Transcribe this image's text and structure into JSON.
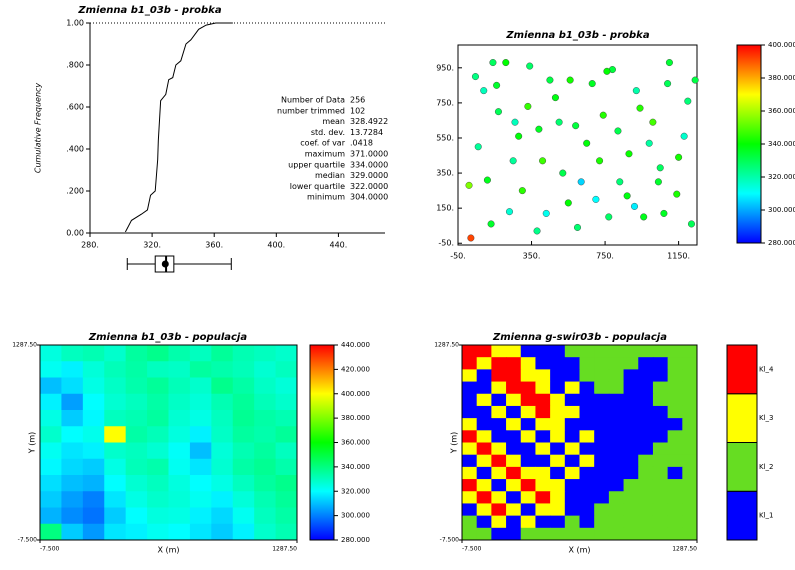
{
  "chart_data": [
    {
      "type": "cdf",
      "title": "Zmienna b1_03b - probka",
      "y_label": "Cumulative Frequency",
      "x": [
        302.8,
        306.7,
        313.2,
        317,
        319,
        322,
        323.6,
        324,
        325.5,
        328.8,
        330.7,
        333.3,
        335.3,
        338.5,
        341.8,
        345,
        350,
        354.8,
        361,
        372
      ],
      "y": [
        0.005,
        0.06,
        0.09,
        0.11,
        0.18,
        0.2,
        0.35,
        0.44,
        0.63,
        0.66,
        0.73,
        0.74,
        0.8,
        0.82,
        0.9,
        0.92,
        0.97,
        0.99,
        1.0,
        1.0
      ],
      "color": "#000000",
      "xlim": [
        280,
        470
      ],
      "ylim": [
        0,
        1
      ],
      "xticks": [
        {
          "value": 280,
          "label": "280."
        },
        {
          "value": 320,
          "label": "320."
        },
        {
          "value": 360,
          "label": "360."
        },
        {
          "value": 400,
          "label": "400."
        },
        {
          "value": 440,
          "label": "440."
        }
      ],
      "yticks": [
        {
          "value": 0,
          "label": "0.00"
        },
        {
          "value": 0.2,
          "label": ".200"
        },
        {
          "value": 0.4,
          "label": ".400"
        },
        {
          "value": 0.6,
          "label": ".600"
        },
        {
          "value": 0.8,
          "label": ".800"
        },
        {
          "value": 1,
          "label": "1.00"
        }
      ],
      "stats": [
        {
          "label": "Number of Data",
          "value": "256"
        },
        {
          "label": "number trimmed",
          "value": "102"
        },
        {
          "label": "mean",
          "value": "328.4922"
        },
        {
          "label": "std. dev.",
          "value": "13.7284"
        },
        {
          "label": "coef. of var",
          "value": ".0418"
        },
        {
          "label": "maximum",
          "value": "371.0000"
        },
        {
          "label": "upper quartile",
          "value": "334.0000"
        },
        {
          "label": "median",
          "value": "329.0000"
        },
        {
          "label": "lower quartile",
          "value": "322.0000"
        },
        {
          "label": "minimum",
          "value": "304.0000"
        }
      ]
    },
    {
      "type": "scatter",
      "title": "Zmienna b1_03b - probka",
      "x": [
        20,
        45,
        90,
        130,
        170,
        210,
        250,
        300,
        340,
        390,
        430,
        480,
        520,
        560,
        600,
        650,
        700,
        740,
        790,
        830,
        880,
        920,
        960,
        1010,
        1050,
        1100,
        1140,
        1180,
        1220,
        60,
        110,
        160,
        230,
        280,
        330,
        380,
        450,
        500,
        550,
        620,
        680,
        720,
        770,
        820,
        870,
        940,
        990,
        1040,
        1090,
        1150,
        1200,
        10,
        140,
        260,
        410,
        590,
        760,
        910,
        1070,
        1240
      ],
      "y": [
        -20,
        900,
        820,
        60,
        700,
        980,
        420,
        250,
        960,
        600,
        120,
        780,
        350,
        880,
        40,
        520,
        200,
        680,
        940,
        300,
        460,
        820,
        100,
        640,
        380,
        980,
        230,
        560,
        60,
        500,
        310,
        850,
        130,
        560,
        730,
        20,
        880,
        640,
        180,
        300,
        860,
        420,
        100,
        590,
        220,
        720,
        520,
        300,
        860,
        440,
        760,
        280,
        980,
        640,
        420,
        620,
        930,
        160,
        120,
        880
      ],
      "values": [
        392,
        325,
        318,
        335,
        330,
        340,
        322,
        345,
        328,
        336,
        312,
        338,
        331,
        342,
        327,
        339,
        310,
        344,
        333,
        326,
        341,
        320,
        337,
        348,
        329,
        334,
        343,
        316,
        330,
        322,
        337,
        335,
        315,
        339,
        346,
        324,
        332,
        327,
        340,
        305,
        336,
        343,
        328,
        331,
        338,
        344,
        321,
        335,
        330,
        342,
        326,
        355,
        329,
        318,
        347,
        333,
        340,
        308,
        336,
        332
      ],
      "xlim": [
        -50,
        1250
      ],
      "ylim": [
        -60,
        1080
      ],
      "xticks": [
        {
          "value": -50,
          "label": "-50."
        },
        {
          "value": 350,
          "label": "350."
        },
        {
          "value": 750,
          "label": "750."
        },
        {
          "value": 1150,
          "label": "1150."
        }
      ],
      "yticks": [
        {
          "value": -50,
          "label": "-50."
        },
        {
          "value": 150,
          "label": "150."
        },
        {
          "value": 350,
          "label": "350."
        },
        {
          "value": 550,
          "label": "550."
        },
        {
          "value": 750,
          "label": "750."
        },
        {
          "value": 950,
          "label": "950."
        }
      ],
      "colormap": [
        "#0000ff",
        "#00ffff",
        "#00ff00",
        "#ffff00",
        "#ff0000"
      ],
      "clim": [
        280,
        400
      ],
      "cticks": [
        {
          "value": 280,
          "label": "280.000"
        },
        {
          "value": 300,
          "label": "300.000"
        },
        {
          "value": 320,
          "label": "320.000"
        },
        {
          "value": 340,
          "label": "340.000"
        },
        {
          "value": 360,
          "label": "360.000"
        },
        {
          "value": 380,
          "label": "380.000"
        },
        {
          "value": 400,
          "label": "400.000"
        }
      ]
    },
    {
      "type": "heatmap",
      "title": "Zmienna b1_03b - populacja",
      "x_label": "X (m)",
      "y_label": "Y (m)",
      "xlim": [
        -7.5,
        1287.5
      ],
      "ylim": [
        -7.5,
        1287.5
      ],
      "xticks": [
        {
          "value": -7.5,
          "label": "-7.500"
        },
        {
          "value": 1287.5,
          "label": "1287.50"
        }
      ],
      "yticks": [
        {
          "value": -7.5,
          "label": "-7.500"
        },
        {
          "value": 1287.5,
          "label": "1287.50"
        }
      ],
      "values": [
        [
          325,
          330,
          332,
          328,
          335,
          338,
          333,
          330,
          336,
          332,
          330,
          328
        ],
        [
          322,
          318,
          326,
          331,
          334,
          330,
          329,
          335,
          333,
          331,
          327,
          330
        ],
        [
          310,
          315,
          324,
          329,
          333,
          336,
          331,
          328,
          338,
          334,
          329,
          326
        ],
        [
          318,
          305,
          320,
          327,
          330,
          334,
          329,
          326,
          332,
          336,
          331,
          328
        ],
        [
          324,
          312,
          319,
          330,
          332,
          335,
          327,
          324,
          330,
          337,
          334,
          332
        ],
        [
          328,
          320,
          323,
          400,
          334,
          331,
          325,
          318,
          329,
          335,
          333,
          336
        ],
        [
          322,
          316,
          318,
          328,
          330,
          327,
          321,
          310,
          326,
          332,
          335,
          330
        ],
        [
          319,
          314,
          312,
          324,
          331,
          333,
          322,
          316,
          327,
          334,
          337,
          333
        ],
        [
          315,
          310,
          308,
          320,
          327,
          330,
          325,
          320,
          324,
          330,
          335,
          338
        ],
        [
          312,
          305,
          300,
          316,
          324,
          328,
          326,
          322,
          318,
          326,
          332,
          336
        ],
        [
          308,
          302,
          298,
          312,
          320,
          325,
          324,
          318,
          314,
          322,
          330,
          334
        ],
        [
          340,
          312,
          304,
          316,
          318,
          322,
          320,
          316,
          312,
          318,
          328,
          332
        ]
      ],
      "colormap": [
        "#0000ff",
        "#00ffff",
        "#00ff00",
        "#ffff00",
        "#ff0000"
      ],
      "clim": [
        280,
        440
      ],
      "cticks": [
        {
          "value": 280,
          "label": "280.000"
        },
        {
          "value": 300,
          "label": "300.000"
        },
        {
          "value": 320,
          "label": "320.000"
        },
        {
          "value": 340,
          "label": "340.000"
        },
        {
          "value": 360,
          "label": "360.000"
        },
        {
          "value": 380,
          "label": "380.000"
        },
        {
          "value": 400,
          "label": "400.000"
        },
        {
          "value": 420,
          "label": "420.000"
        },
        {
          "value": 440,
          "label": "440.000"
        }
      ]
    },
    {
      "type": "category_map",
      "title": "Zmienna g-swir03b - populacja",
      "x_label": "X (m)",
      "y_label": "Y (m)",
      "xlim": [
        -7.5,
        1287.5
      ],
      "ylim": [
        -7.5,
        1287.5
      ],
      "xticks": [
        {
          "value": -7.5,
          "label": "-7.500"
        },
        {
          "value": 1287.5,
          "label": "1287.50"
        }
      ],
      "yticks": [
        {
          "value": -7.5,
          "label": "-7.500"
        },
        {
          "value": 1287.5,
          "label": "1287.50"
        }
      ],
      "classes": [
        {
          "name": "Kl_1",
          "color": "#0000ff"
        },
        {
          "name": "Kl_2",
          "color": "#66dd22"
        },
        {
          "name": "Kl_3",
          "color": "#ffff00"
        },
        {
          "name": "Kl_4",
          "color": "#ff0000"
        }
      ],
      "values": [
        [
          4,
          4,
          3,
          3,
          1,
          1,
          1,
          2,
          2,
          2,
          2,
          2,
          2,
          2,
          2,
          2
        ],
        [
          4,
          3,
          4,
          4,
          3,
          1,
          1,
          1,
          2,
          2,
          2,
          2,
          1,
          1,
          2,
          2
        ],
        [
          3,
          1,
          4,
          4,
          3,
          3,
          1,
          1,
          2,
          2,
          2,
          1,
          1,
          1,
          2,
          2
        ],
        [
          1,
          1,
          3,
          4,
          4,
          3,
          1,
          3,
          1,
          2,
          2,
          1,
          1,
          2,
          2,
          2
        ],
        [
          1,
          3,
          1,
          3,
          4,
          4,
          3,
          1,
          1,
          1,
          1,
          1,
          1,
          2,
          2,
          2
        ],
        [
          1,
          1,
          3,
          1,
          3,
          4,
          3,
          3,
          1,
          1,
          1,
          1,
          1,
          1,
          2,
          2
        ],
        [
          3,
          1,
          1,
          3,
          1,
          3,
          3,
          1,
          1,
          1,
          1,
          1,
          1,
          1,
          1,
          2
        ],
        [
          4,
          3,
          1,
          1,
          3,
          1,
          3,
          1,
          3,
          1,
          1,
          1,
          1,
          1,
          2,
          2
        ],
        [
          3,
          4,
          3,
          1,
          1,
          3,
          1,
          3,
          1,
          1,
          1,
          1,
          1,
          2,
          2,
          2
        ],
        [
          1,
          3,
          4,
          3,
          1,
          1,
          3,
          1,
          3,
          1,
          1,
          1,
          2,
          2,
          2,
          2
        ],
        [
          3,
          1,
          3,
          4,
          3,
          3,
          1,
          3,
          1,
          1,
          1,
          1,
          2,
          2,
          1,
          2
        ],
        [
          4,
          3,
          1,
          3,
          4,
          3,
          3,
          1,
          1,
          1,
          1,
          2,
          2,
          2,
          2,
          2
        ],
        [
          3,
          4,
          3,
          1,
          3,
          4,
          3,
          1,
          1,
          1,
          2,
          2,
          2,
          2,
          2,
          2
        ],
        [
          1,
          3,
          4,
          3,
          1,
          3,
          3,
          1,
          1,
          2,
          2,
          2,
          2,
          2,
          2,
          2
        ],
        [
          2,
          1,
          3,
          1,
          3,
          1,
          1,
          2,
          1,
          2,
          2,
          2,
          2,
          2,
          2,
          2
        ],
        [
          2,
          2,
          1,
          1,
          2,
          2,
          2,
          2,
          2,
          2,
          2,
          2,
          2,
          2,
          2,
          2
        ]
      ]
    }
  ]
}
